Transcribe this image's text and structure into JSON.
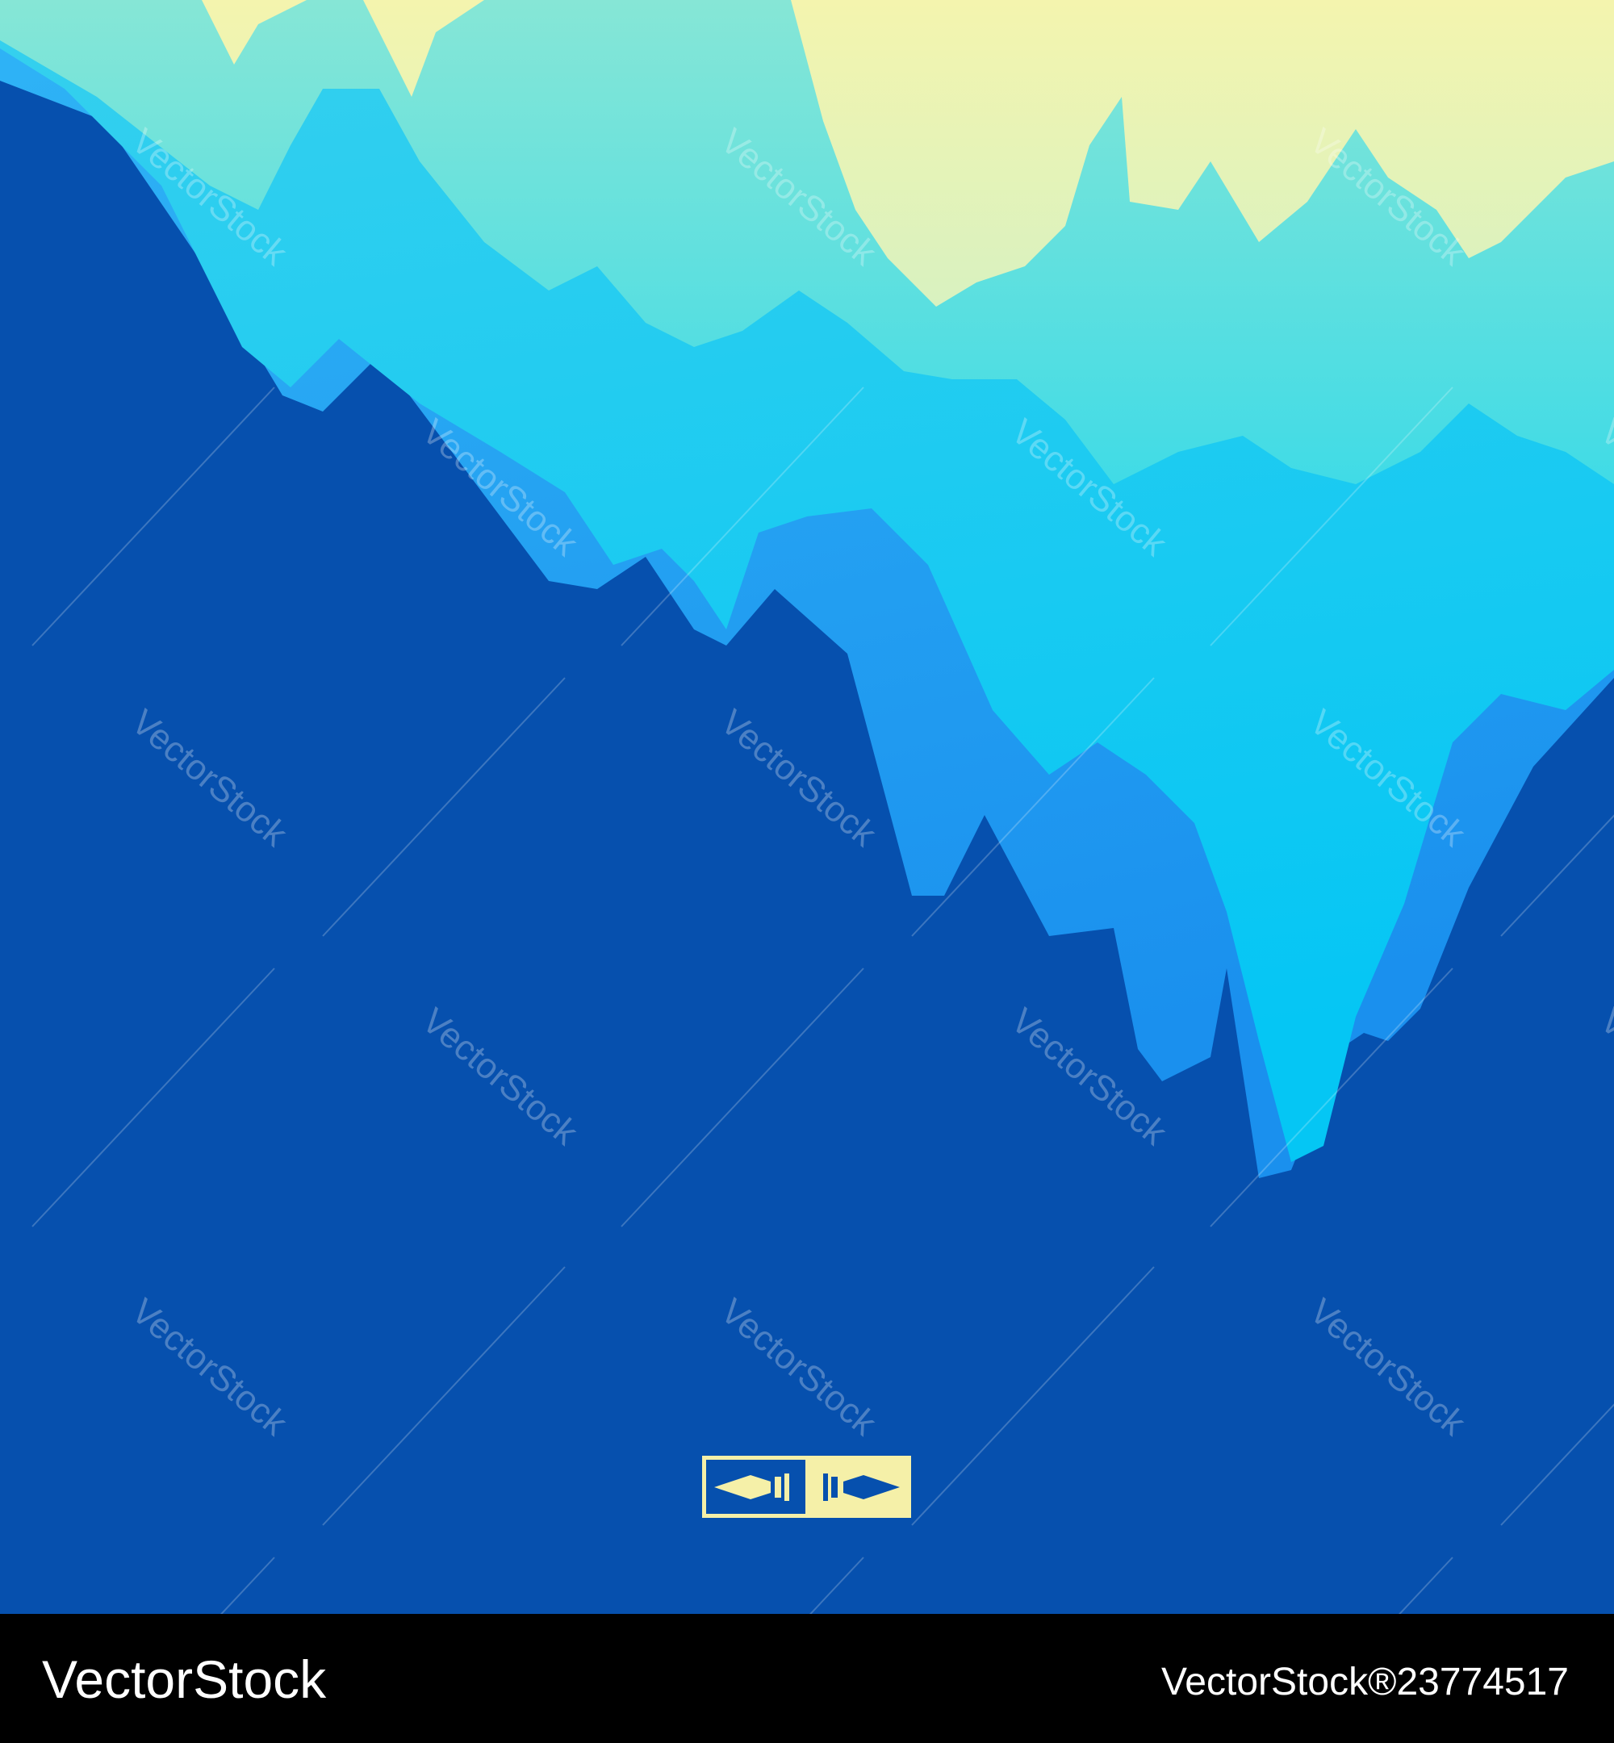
{
  "watermark": "VectorStock",
  "footer": {
    "brand": "VectorStock",
    "site": "VectorStock®",
    "image_id": "23774517"
  }
}
